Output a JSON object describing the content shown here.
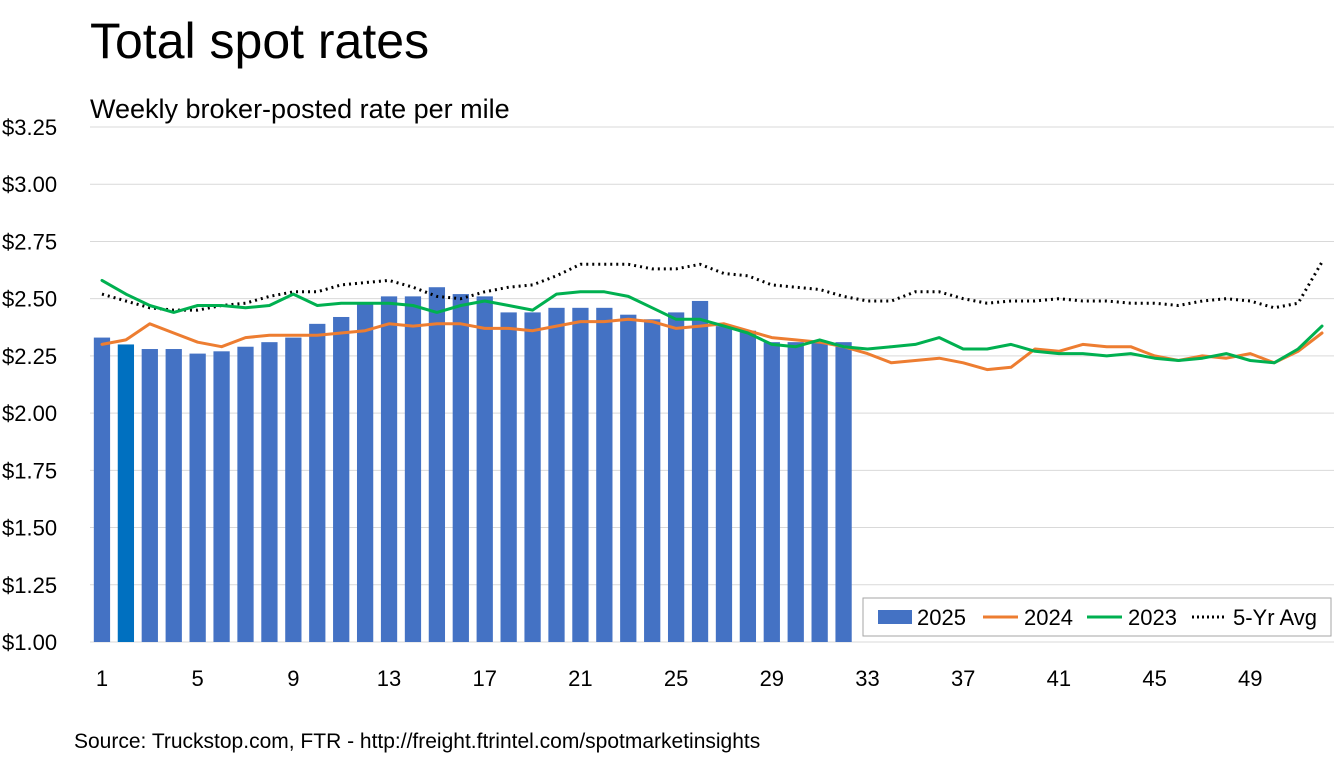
{
  "chart_data": {
    "type": "bar",
    "title": "Total spot rates",
    "subtitle": "Weekly broker-posted rate per mile",
    "source": "Source: Truckstop.com, FTR - http://freight.ftrintel.com/spotmarketinsights",
    "xlabel": "",
    "ylabel": "",
    "ylim": [
      1.0,
      3.25
    ],
    "y_ticks": [
      1.0,
      1.25,
      1.5,
      1.75,
      2.0,
      2.25,
      2.5,
      2.75,
      3.0,
      3.25
    ],
    "y_tick_labels": [
      "$1.00",
      "$1.25",
      "$1.50",
      "$1.75",
      "$2.00",
      "$2.25",
      "$2.50",
      "$2.75",
      "$3.00",
      "$3.25"
    ],
    "x_ticks": [
      1,
      5,
      9,
      13,
      17,
      21,
      25,
      29,
      33,
      37,
      41,
      45,
      49
    ],
    "x_tick_labels": [
      "1",
      "5",
      "9",
      "13",
      "17",
      "21",
      "25",
      "29",
      "33",
      "37",
      "41",
      "45",
      "49"
    ],
    "weeks": 52,
    "legend_position": "bottom-right",
    "series": [
      {
        "name": "2025",
        "kind": "bar",
        "color": "#4472c4",
        "highlight_index": 1,
        "highlight_color": "#0070c0",
        "values": [
          2.33,
          2.3,
          2.28,
          2.28,
          2.26,
          2.27,
          2.29,
          2.31,
          2.33,
          2.39,
          2.42,
          2.48,
          2.51,
          2.51,
          2.55,
          2.52,
          2.51,
          2.44,
          2.44,
          2.46,
          2.46,
          2.46,
          2.43,
          2.41,
          2.44,
          2.49,
          2.38,
          2.36,
          2.31,
          2.31,
          2.31,
          2.31
        ]
      },
      {
        "name": "2024",
        "kind": "line",
        "color": "#ed7d31",
        "values": [
          2.3,
          2.32,
          2.39,
          2.35,
          2.31,
          2.29,
          2.33,
          2.34,
          2.34,
          2.34,
          2.35,
          2.36,
          2.39,
          2.38,
          2.39,
          2.39,
          2.37,
          2.37,
          2.36,
          2.38,
          2.4,
          2.4,
          2.41,
          2.4,
          2.37,
          2.38,
          2.39,
          2.36,
          2.33,
          2.32,
          2.31,
          2.29,
          2.26,
          2.22,
          2.23,
          2.24,
          2.22,
          2.19,
          2.2,
          2.28,
          2.27,
          2.3,
          2.29,
          2.29,
          2.25,
          2.23,
          2.25,
          2.24,
          2.26,
          2.22,
          2.27,
          2.35
        ]
      },
      {
        "name": "2023",
        "kind": "line",
        "color": "#00b050",
        "values": [
          2.58,
          2.52,
          2.47,
          2.44,
          2.47,
          2.47,
          2.46,
          2.47,
          2.52,
          2.47,
          2.48,
          2.48,
          2.48,
          2.47,
          2.44,
          2.47,
          2.49,
          2.47,
          2.45,
          2.52,
          2.53,
          2.53,
          2.51,
          2.46,
          2.41,
          2.41,
          2.38,
          2.35,
          2.3,
          2.29,
          2.32,
          2.29,
          2.28,
          2.29,
          2.3,
          2.33,
          2.28,
          2.28,
          2.3,
          2.27,
          2.26,
          2.26,
          2.25,
          2.26,
          2.24,
          2.23,
          2.24,
          2.26,
          2.23,
          2.22,
          2.28,
          2.38
        ]
      },
      {
        "name": "5-Yr Avg",
        "kind": "dotted-line",
        "color": "#000000",
        "values": [
          2.52,
          2.49,
          2.46,
          2.45,
          2.45,
          2.47,
          2.48,
          2.51,
          2.53,
          2.53,
          2.56,
          2.57,
          2.58,
          2.55,
          2.51,
          2.5,
          2.53,
          2.55,
          2.56,
          2.6,
          2.65,
          2.65,
          2.65,
          2.63,
          2.63,
          2.65,
          2.61,
          2.6,
          2.56,
          2.55,
          2.54,
          2.51,
          2.49,
          2.49,
          2.53,
          2.53,
          2.5,
          2.48,
          2.49,
          2.49,
          2.5,
          2.49,
          2.49,
          2.48,
          2.48,
          2.47,
          2.49,
          2.5,
          2.49,
          2.46,
          2.48,
          2.66
        ]
      }
    ]
  }
}
